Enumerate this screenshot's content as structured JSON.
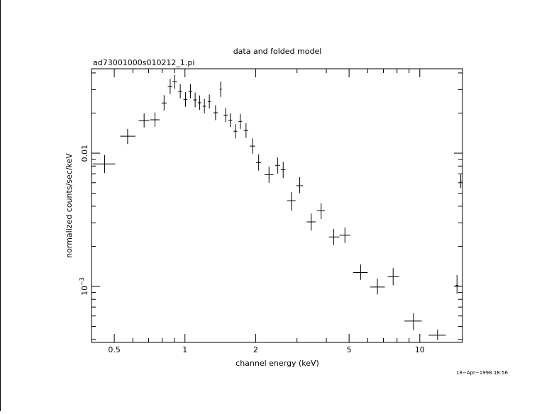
{
  "chart_data": {
    "type": "scatter",
    "title": "data and folded model",
    "subtitle": "ad73001000s010212_1.pi",
    "xlabel": "channel energy (keV)",
    "ylabel": "normalized counts/sec/keV",
    "xscale": "log",
    "yscale": "log",
    "xlim": [
      0.4,
      15.2
    ],
    "ylim": [
      0.00038,
      0.043
    ],
    "grid": false,
    "x_ticks": [
      {
        "value": 0.5,
        "label": "0.5"
      },
      {
        "value": 1,
        "label": "1"
      },
      {
        "value": 2,
        "label": "2"
      },
      {
        "value": 5,
        "label": "5"
      },
      {
        "value": 10,
        "label": "10"
      }
    ],
    "y_ticks": [
      {
        "value": 0.01,
        "label": "0.01",
        "base": "",
        "exp": ""
      },
      {
        "value": 0.001,
        "label": "",
        "base": "10",
        "exp": "−3"
      }
    ],
    "series": [
      {
        "points": [
          {
            "x": 0.455,
            "xlo": 0.405,
            "xhi": 0.505,
            "y": 0.0083,
            "ylo": 0.0071,
            "yhi": 0.0097
          },
          {
            "x": 0.57,
            "xlo": 0.53,
            "xhi": 0.615,
            "y": 0.0134,
            "ylo": 0.0117,
            "yhi": 0.0152
          },
          {
            "x": 0.67,
            "xlo": 0.635,
            "xhi": 0.705,
            "y": 0.0176,
            "ylo": 0.0156,
            "yhi": 0.0199
          },
          {
            "x": 0.745,
            "xlo": 0.71,
            "xhi": 0.78,
            "y": 0.0178,
            "ylo": 0.0158,
            "yhi": 0.0202
          },
          {
            "x": 0.815,
            "xlo": 0.795,
            "xhi": 0.835,
            "y": 0.0238,
            "ylo": 0.0209,
            "yhi": 0.0272
          },
          {
            "x": 0.865,
            "xlo": 0.845,
            "xhi": 0.885,
            "y": 0.0316,
            "ylo": 0.0278,
            "yhi": 0.0361
          },
          {
            "x": 0.905,
            "xlo": 0.885,
            "xhi": 0.925,
            "y": 0.0343,
            "ylo": 0.0304,
            "yhi": 0.0387
          },
          {
            "x": 0.955,
            "xlo": 0.935,
            "xhi": 0.975,
            "y": 0.0291,
            "ylo": 0.0258,
            "yhi": 0.0329
          },
          {
            "x": 1.005,
            "xlo": 0.985,
            "xhi": 1.025,
            "y": 0.0253,
            "ylo": 0.0223,
            "yhi": 0.0287
          },
          {
            "x": 1.055,
            "xlo": 1.035,
            "xhi": 1.075,
            "y": 0.0291,
            "ylo": 0.0258,
            "yhi": 0.0329
          },
          {
            "x": 1.105,
            "xlo": 1.085,
            "xhi": 1.125,
            "y": 0.0251,
            "ylo": 0.0221,
            "yhi": 0.0285
          },
          {
            "x": 1.155,
            "xlo": 1.135,
            "xhi": 1.175,
            "y": 0.0239,
            "ylo": 0.0211,
            "yhi": 0.0271
          },
          {
            "x": 1.21,
            "xlo": 1.19,
            "xhi": 1.23,
            "y": 0.0225,
            "ylo": 0.0199,
            "yhi": 0.0256
          },
          {
            "x": 1.27,
            "xlo": 1.25,
            "xhi": 1.29,
            "y": 0.0244,
            "ylo": 0.0216,
            "yhi": 0.0276
          },
          {
            "x": 1.35,
            "xlo": 1.32,
            "xhi": 1.38,
            "y": 0.0201,
            "ylo": 0.0177,
            "yhi": 0.0229
          },
          {
            "x": 1.42,
            "xlo": 1.405,
            "xhi": 1.435,
            "y": 0.0302,
            "ylo": 0.0264,
            "yhi": 0.0345
          },
          {
            "x": 1.49,
            "xlo": 1.46,
            "xhi": 1.52,
            "y": 0.0193,
            "ylo": 0.0171,
            "yhi": 0.0218
          },
          {
            "x": 1.56,
            "xlo": 1.53,
            "xhi": 1.59,
            "y": 0.0177,
            "ylo": 0.0157,
            "yhi": 0.02
          },
          {
            "x": 1.64,
            "xlo": 1.61,
            "xhi": 1.67,
            "y": 0.0146,
            "ylo": 0.0129,
            "yhi": 0.0165
          },
          {
            "x": 1.72,
            "xlo": 1.69,
            "xhi": 1.75,
            "y": 0.0173,
            "ylo": 0.0152,
            "yhi": 0.0197
          },
          {
            "x": 1.82,
            "xlo": 1.78,
            "xhi": 1.86,
            "y": 0.0148,
            "ylo": 0.013,
            "yhi": 0.0168
          },
          {
            "x": 1.94,
            "xlo": 1.89,
            "xhi": 1.99,
            "y": 0.0113,
            "ylo": 0.0099,
            "yhi": 0.0129
          },
          {
            "x": 2.06,
            "xlo": 2.01,
            "xhi": 2.11,
            "y": 0.0085,
            "ylo": 0.0074,
            "yhi": 0.0098
          },
          {
            "x": 2.28,
            "xlo": 2.18,
            "xhi": 2.38,
            "y": 0.0069,
            "ylo": 0.006,
            "yhi": 0.0079
          },
          {
            "x": 2.48,
            "xlo": 2.42,
            "xhi": 2.54,
            "y": 0.0081,
            "ylo": 0.007,
            "yhi": 0.0093
          },
          {
            "x": 2.62,
            "xlo": 2.56,
            "xhi": 2.68,
            "y": 0.0075,
            "ylo": 0.0065,
            "yhi": 0.0086
          },
          {
            "x": 2.84,
            "xlo": 2.72,
            "xhi": 2.96,
            "y": 0.0044,
            "ylo": 0.0037,
            "yhi": 0.0051
          },
          {
            "x": 3.08,
            "xlo": 2.98,
            "xhi": 3.18,
            "y": 0.0057,
            "ylo": 0.005,
            "yhi": 0.0066
          },
          {
            "x": 3.45,
            "xlo": 3.3,
            "xhi": 3.6,
            "y": 0.00305,
            "ylo": 0.00262,
            "yhi": 0.00352
          },
          {
            "x": 3.8,
            "xlo": 3.65,
            "xhi": 3.95,
            "y": 0.0037,
            "ylo": 0.0032,
            "yhi": 0.0042
          },
          {
            "x": 4.3,
            "xlo": 4.1,
            "xhi": 4.55,
            "y": 0.00235,
            "ylo": 0.00205,
            "yhi": 0.0027
          },
          {
            "x": 4.8,
            "xlo": 4.55,
            "xhi": 5.05,
            "y": 0.00242,
            "ylo": 0.00212,
            "yhi": 0.00277
          },
          {
            "x": 5.6,
            "xlo": 5.2,
            "xhi": 6.0,
            "y": 0.00127,
            "ylo": 0.00112,
            "yhi": 0.00146
          },
          {
            "x": 6.6,
            "xlo": 6.15,
            "xhi": 7.1,
            "y": 0.00099,
            "ylo": 0.00087,
            "yhi": 0.00114
          },
          {
            "x": 7.7,
            "xlo": 7.3,
            "xhi": 8.15,
            "y": 0.00118,
            "ylo": 0.00102,
            "yhi": 0.00137
          },
          {
            "x": 9.4,
            "xlo": 8.6,
            "xhi": 10.2,
            "y": 0.00055,
            "ylo": 0.00047,
            "yhi": 0.00063
          },
          {
            "x": 11.9,
            "xlo": 10.9,
            "xhi": 12.9,
            "y": 0.00043,
            "ylo": 0.000395,
            "yhi": 0.000475
          },
          {
            "x": 14.4,
            "xlo": 14.2,
            "xhi": 14.6,
            "y": 0.00102,
            "ylo": 0.00088,
            "yhi": 0.00122
          },
          {
            "x": 14.95,
            "xlo": 14.85,
            "xhi": 15.05,
            "y": 0.0061,
            "ylo": 0.0055,
            "yhi": 0.0069
          }
        ]
      }
    ]
  },
  "footer": {
    "timestamp": "18−Apr−1998 18:56"
  }
}
